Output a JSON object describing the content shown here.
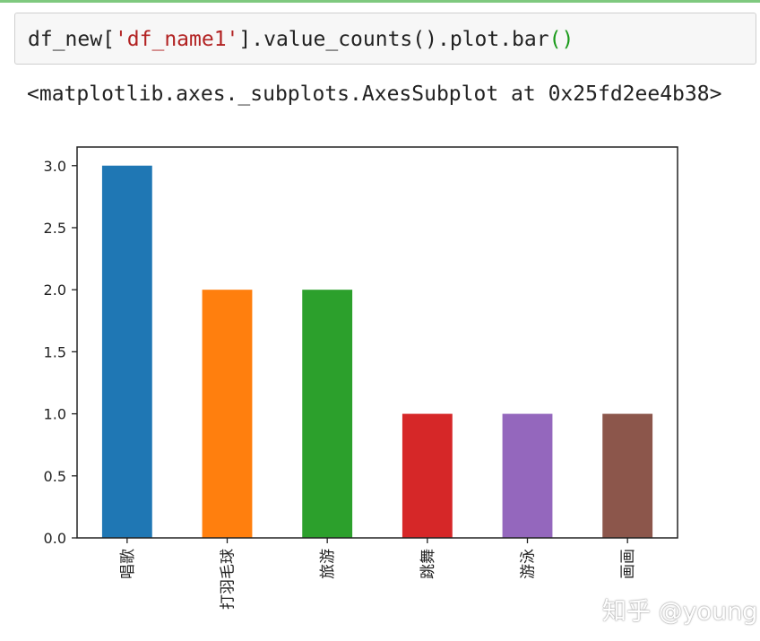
{
  "cell": {
    "code": {
      "prefix": "df_new[",
      "string": "'df_name1'",
      "middle": "].value_counts().plot.bar",
      "call_parens": "()"
    },
    "output_text": "<matplotlib.axes._subplots.AxesSubplot at 0x25fd2ee4b38>"
  },
  "chart_data": {
    "type": "bar",
    "categories": [
      "唱歌",
      "打羽毛球",
      "旅游",
      "跳舞",
      "游泳",
      "画画"
    ],
    "values": [
      3,
      2,
      2,
      1,
      1,
      1
    ],
    "colors": [
      "#1f77b4",
      "#ff7f0e",
      "#2ca02c",
      "#d62728",
      "#9467bd",
      "#8c564b"
    ],
    "yticks": [
      "0.0",
      "0.5",
      "1.0",
      "1.5",
      "2.0",
      "2.5",
      "3.0"
    ],
    "ylim": [
      0,
      3.15
    ],
    "title": "",
    "xlabel": "",
    "ylabel": "",
    "grid": false
  },
  "watermark": "知乎 @young"
}
